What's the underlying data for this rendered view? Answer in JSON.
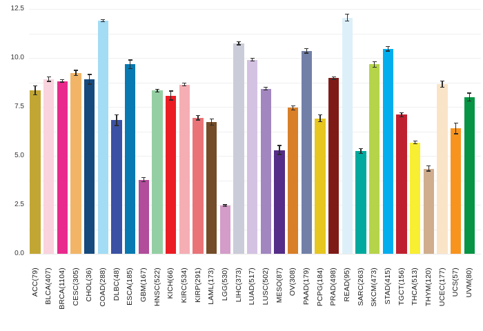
{
  "chart_data": {
    "type": "bar",
    "categories": [
      "ACC(79)",
      "BLCA(407)",
      "BRCA(1104)",
      "CESC(305)",
      "CHOL(36)",
      "COAD(288)",
      "DLBC(48)",
      "ESCA(185)",
      "GBM(167)",
      "HNSC(522)",
      "KICH(66)",
      "KIRC(534)",
      "KIRP(291)",
      "LAML(173)",
      "LGG(530)",
      "LIHC(373)",
      "LUAD(517)",
      "LUSC(502)",
      "MESO(87)",
      "OV(308)",
      "PAAD(179)",
      "PCPG(184)",
      "PRAD(498)",
      "READ(95)",
      "SARC(263)",
      "SKCM(473)",
      "STAD(415)",
      "TGCT(156)",
      "THCA(513)",
      "THYM(120)",
      "UCEC(177)",
      "UCS(57)",
      "UVM(80)"
    ],
    "values": [
      8.35,
      8.92,
      8.82,
      9.24,
      8.91,
      11.9,
      6.83,
      9.67,
      3.78,
      8.33,
      8.08,
      8.64,
      6.95,
      6.72,
      2.45,
      10.75,
      9.91,
      8.43,
      5.3,
      7.45,
      10.37,
      6.92,
      8.97,
      12.05,
      5.25,
      9.67,
      10.46,
      7.1,
      5.68,
      4.35,
      8.66,
      6.4,
      8.0
    ],
    "errors": [
      0.25,
      0.14,
      0.08,
      0.15,
      0.27,
      0.08,
      0.3,
      0.25,
      0.12,
      0.09,
      0.25,
      0.09,
      0.14,
      0.18,
      0.07,
      0.1,
      0.1,
      0.1,
      0.25,
      0.13,
      0.14,
      0.2,
      0.08,
      0.2,
      0.15,
      0.17,
      0.13,
      0.12,
      0.1,
      0.15,
      0.18,
      0.3,
      0.23
    ],
    "bar_colors": [
      "#c1a633",
      "#f9d3dd",
      "#e92a8d",
      "#f2b567",
      "#164a7d",
      "#a3dcf5",
      "#3b51a3",
      "#0879b1",
      "#b14d9b",
      "#94cfa3",
      "#ec1c24",
      "#f5aeb4",
      "#ea7378",
      "#744c29",
      "#d49cc9",
      "#cbccd9",
      "#d4c2e2",
      "#a186c0",
      "#552c87",
      "#d97f28",
      "#7280a8",
      "#e7c620",
      "#7f1b17",
      "#ddf0f9",
      "#00a99d",
      "#b5d44a",
      "#02aeee",
      "#bf2030",
      "#f8ee32",
      "#d0ad8d",
      "#fae4c8",
      "#f8941e",
      "#079444"
    ],
    "ylim": [
      0,
      12.5
    ],
    "ytick_labels": [
      "0.0",
      "2.5",
      "5.0",
      "7.5",
      "10.0",
      "12.5"
    ],
    "yticks": [
      0.0,
      2.5,
      5.0,
      7.5,
      10.0,
      12.5
    ],
    "minor_gridline_step": 1.25,
    "grid": "horizontal",
    "legend": "none",
    "error_bars": true,
    "error_bar_color": "#2b2b2b",
    "axis_text_color": "#333333",
    "background_color": "#ffffff"
  }
}
